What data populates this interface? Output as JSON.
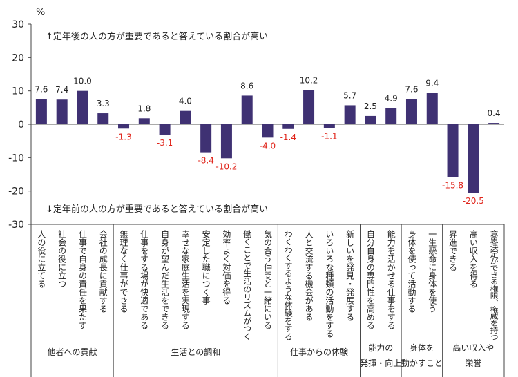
{
  "chart_data": {
    "type": "bar",
    "unit_label": "%",
    "ylim": [
      -30,
      30
    ],
    "yticks": [
      30,
      20,
      10,
      0,
      -10,
      -20,
      -30
    ],
    "annotation_top": "↑定年後の人の方が重要であると答えている割合が高い",
    "annotation_bottom": "↓定年前の人の方が重要であると答えている割合が高い",
    "bar_color": "#3f3173",
    "positive_label_color": "#222222",
    "negative_label_color": "#e0251b",
    "categories": [
      "人の役に立てる",
      "社会の役に立つ",
      "仕事で自身の責任を果たす",
      "会社の成長に貢献する",
      "無理なく仕事ができる",
      "仕事をする場が快適である",
      "自身が望んだ生活をできる",
      "幸せな家庭生活を実現する",
      "安定した職につく事",
      "効率よく対価を得る",
      "働くことで生活のリズムがつく",
      "気の合う仲間と一緒にいる",
      "わくわくするような体験をする",
      "人と交流する機会がある",
      "いろいろな種類の活動をする",
      "新しいを発見・発展する",
      "自分自身の専門性を高める",
      "能力を活かせる仕事をする",
      "身体を使って活動する",
      "一生懸命に身体を使う",
      "昇進できる",
      "高い収入を得る",
      "意思決定ができる権限、権威を持つ"
    ],
    "values": [
      7.6,
      7.4,
      10.0,
      3.3,
      -1.3,
      1.8,
      -3.1,
      4.0,
      -8.4,
      -10.2,
      8.6,
      -4.0,
      -1.4,
      10.2,
      -1.1,
      5.7,
      2.5,
      4.9,
      7.6,
      9.4,
      -15.8,
      -20.5,
      0.4
    ],
    "value_labels": [
      "7.6",
      "7.4",
      "10.0",
      "3.3",
      "-1.3",
      "1.8",
      "-3.1",
      "4.0",
      "-8.4",
      "-10.2",
      "8.6",
      "-4.0",
      "-1.4",
      "10.2",
      "-1.1",
      "5.7",
      "2.5",
      "4.9",
      "7.6",
      "9.4",
      "-15.8",
      "-20.5",
      "0.4"
    ],
    "groups": [
      {
        "lines": [
          "他者への貢献"
        ],
        "start": 0,
        "end": 3
      },
      {
        "lines": [
          "生活との調和"
        ],
        "start": 4,
        "end": 11
      },
      {
        "lines": [
          "仕事からの体験"
        ],
        "start": 12,
        "end": 15
      },
      {
        "lines": [
          "能力の",
          "発揮・向上"
        ],
        "start": 16,
        "end": 17
      },
      {
        "lines": [
          "身体を",
          "動かすこと"
        ],
        "start": 18,
        "end": 19
      },
      {
        "lines": [
          "高い収入や",
          "栄誉"
        ],
        "start": 20,
        "end": 22
      }
    ]
  }
}
